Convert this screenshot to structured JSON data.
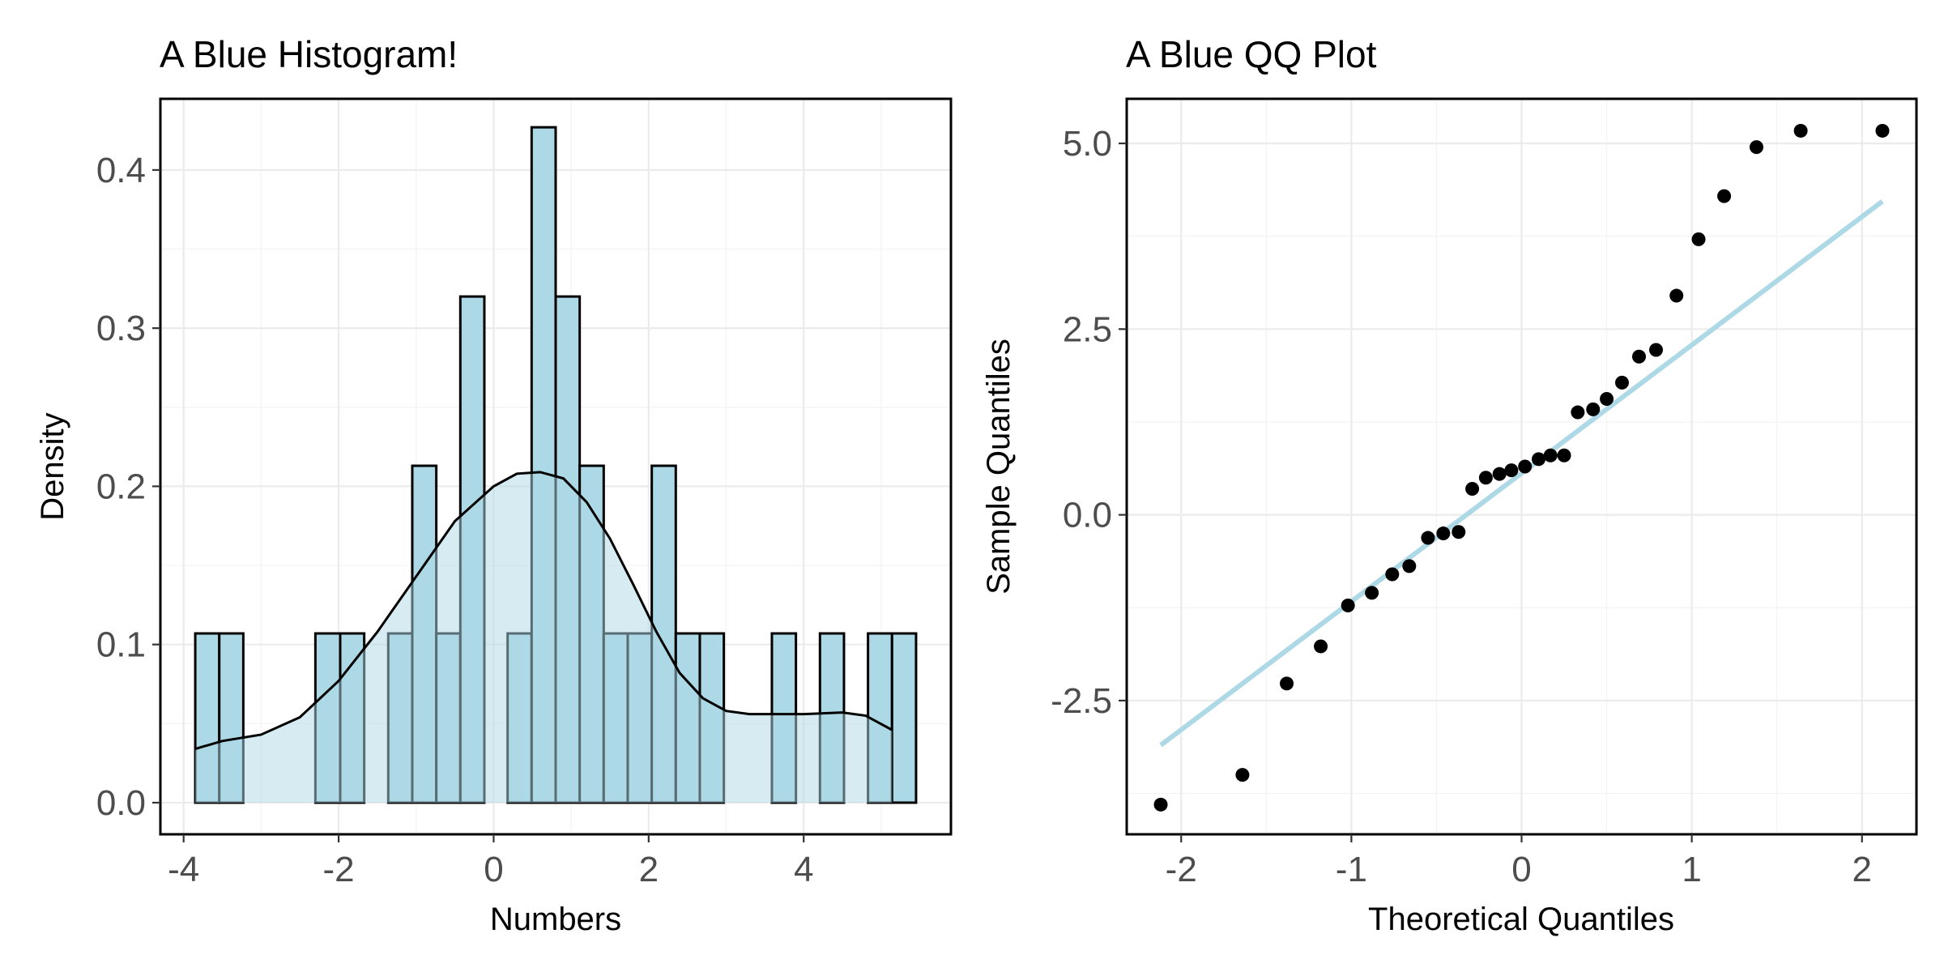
{
  "colors": {
    "bar_fill": "#add8e6",
    "bar_stroke": "#000000",
    "density_fill": "#add8e6",
    "density_line": "#000000",
    "qq_line": "#add8e6",
    "points": "#000000"
  },
  "chart_data": [
    {
      "type": "bar",
      "title": "A Blue Histogram!",
      "xlabel": "Numbers",
      "ylabel": "Density",
      "xlim": [
        -4.3,
        5.9
      ],
      "ylim": [
        -0.02,
        0.445
      ],
      "xticks": [
        -4,
        -2,
        0,
        2,
        4
      ],
      "xtick_labels": [
        "-4",
        "-2",
        "0",
        "2",
        "4"
      ],
      "yticks": [
        0.0,
        0.1,
        0.2,
        0.3,
        0.4
      ],
      "ytick_labels": [
        "0.0",
        "0.1",
        "0.2",
        "0.3",
        "0.4"
      ],
      "grid": true,
      "bins": [
        {
          "x0": -3.85,
          "x1": -3.54,
          "value": 0.107
        },
        {
          "x0": -3.54,
          "x1": -3.23,
          "value": 0.107
        },
        {
          "x0": -2.3,
          "x1": -1.98,
          "value": 0.107
        },
        {
          "x0": -1.98,
          "x1": -1.67,
          "value": 0.107
        },
        {
          "x0": -1.36,
          "x1": -1.05,
          "value": 0.107
        },
        {
          "x0": -1.05,
          "x1": -0.74,
          "value": 0.213
        },
        {
          "x0": -0.74,
          "x1": -0.43,
          "value": 0.107
        },
        {
          "x0": -0.43,
          "x1": -0.12,
          "value": 0.32
        },
        {
          "x0": 0.18,
          "x1": 0.49,
          "value": 0.107
        },
        {
          "x0": 0.49,
          "x1": 0.8,
          "value": 0.427
        },
        {
          "x0": 0.8,
          "x1": 1.11,
          "value": 0.32
        },
        {
          "x0": 1.11,
          "x1": 1.42,
          "value": 0.213
        },
        {
          "x0": 1.42,
          "x1": 1.73,
          "value": 0.107
        },
        {
          "x0": 1.73,
          "x1": 2.04,
          "value": 0.107
        },
        {
          "x0": 2.04,
          "x1": 2.35,
          "value": 0.213
        },
        {
          "x0": 2.35,
          "x1": 2.66,
          "value": 0.107
        },
        {
          "x0": 2.66,
          "x1": 2.97,
          "value": 0.107
        },
        {
          "x0": 3.59,
          "x1": 3.9,
          "value": 0.107
        },
        {
          "x0": 4.21,
          "x1": 4.52,
          "value": 0.107
        },
        {
          "x0": 4.83,
          "x1": 5.14,
          "value": 0.107
        },
        {
          "x0": 5.14,
          "x1": 5.45,
          "value": 0.107
        }
      ],
      "density": {
        "x": [
          -3.85,
          -3.5,
          -3.0,
          -2.5,
          -2.0,
          -1.5,
          -1.0,
          -0.5,
          0.0,
          0.3,
          0.6,
          0.9,
          1.2,
          1.5,
          1.8,
          2.1,
          2.4,
          2.7,
          3.0,
          3.3,
          3.6,
          4.0,
          4.5,
          4.8,
          5.14
        ],
        "y": [
          0.034,
          0.039,
          0.043,
          0.054,
          0.077,
          0.108,
          0.143,
          0.178,
          0.2,
          0.208,
          0.209,
          0.205,
          0.19,
          0.167,
          0.138,
          0.108,
          0.082,
          0.066,
          0.058,
          0.056,
          0.056,
          0.056,
          0.057,
          0.055,
          0.046
        ]
      }
    },
    {
      "type": "scatter",
      "title": "A Blue QQ Plot",
      "xlabel": "Theoretical Quantiles",
      "ylabel": "Sample Quantiles",
      "xlim": [
        -2.32,
        2.32
      ],
      "ylim": [
        -4.3,
        5.6
      ],
      "xticks": [
        -2,
        -1,
        0,
        1,
        2
      ],
      "xtick_labels": [
        "-2",
        "-1",
        "0",
        "1",
        "2"
      ],
      "yticks": [
        -2.5,
        0.0,
        2.5,
        5.0
      ],
      "ytick_labels": [
        "-2.5",
        "0.0",
        "2.5",
        "5.0"
      ],
      "grid": true,
      "points": {
        "x": [
          -2.12,
          -1.64,
          -1.38,
          -1.18,
          -1.02,
          -0.88,
          -0.76,
          -0.66,
          -0.55,
          -0.46,
          -0.37,
          -0.29,
          -0.21,
          -0.13,
          -0.06,
          0.02,
          0.1,
          0.17,
          0.25,
          0.33,
          0.42,
          0.5,
          0.59,
          0.69,
          0.79,
          0.91,
          1.04,
          1.19,
          1.38,
          1.64,
          2.12
        ],
        "y": [
          -3.9,
          -3.5,
          -2.27,
          -1.77,
          -1.22,
          -1.05,
          -0.8,
          -0.69,
          -0.31,
          -0.25,
          -0.23,
          0.35,
          0.5,
          0.55,
          0.6,
          0.65,
          0.75,
          0.8,
          0.8,
          1.38,
          1.42,
          1.56,
          1.78,
          2.13,
          2.22,
          2.95,
          3.71,
          4.29,
          4.95,
          5.17,
          5.17
        ]
      },
      "reference_line": {
        "x": [
          -2.12,
          2.12
        ],
        "y": [
          -3.1,
          4.22
        ]
      }
    }
  ]
}
